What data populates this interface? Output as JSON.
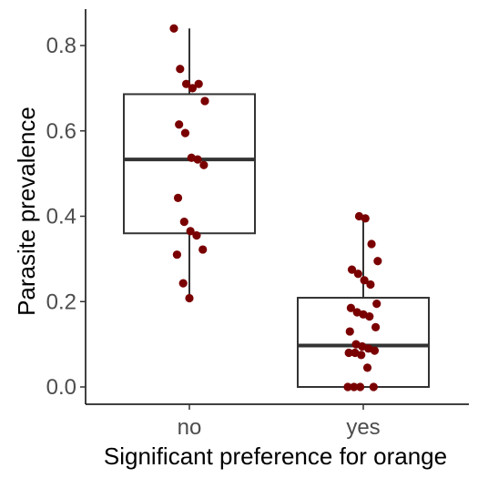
{
  "chart_data": {
    "type": "box",
    "title": "",
    "xlabel": "Significant preference for orange",
    "ylabel": "Parasite prevalence",
    "categories": [
      "no",
      "yes"
    ],
    "ylim": [
      -0.04,
      0.88
    ],
    "yticks": [
      0.0,
      0.2,
      0.4,
      0.6,
      0.8
    ],
    "ytick_labels": [
      "0.0",
      "0.2",
      "0.4",
      "0.6",
      "0.8"
    ],
    "grid": false,
    "colors": {
      "points": "#7a0000",
      "box": "#333333",
      "axis": "#000000"
    },
    "boxes": [
      {
        "category": "no",
        "whisker_low": 0.21,
        "q1": 0.36,
        "median": 0.533,
        "q3": 0.686,
        "whisker_high": 0.84
      },
      {
        "category": "yes",
        "whisker_low": 0.0,
        "q1": 0.0,
        "median": 0.097,
        "q3": 0.209,
        "whisker_high": 0.4
      }
    ],
    "points": [
      {
        "category": "no",
        "values": [
          0.84,
          0.745,
          0.71,
          0.7,
          0.71,
          0.67,
          0.615,
          0.595,
          0.537,
          0.533,
          0.52,
          0.443,
          0.387,
          0.365,
          0.355,
          0.322,
          0.31,
          0.243,
          0.208
        ]
      },
      {
        "category": "yes",
        "values": [
          0.4,
          0.395,
          0.335,
          0.295,
          0.275,
          0.265,
          0.25,
          0.24,
          0.195,
          0.185,
          0.175,
          0.17,
          0.165,
          0.14,
          0.13,
          0.1,
          0.095,
          0.09,
          0.085,
          0.08,
          0.08,
          0.075,
          0.045,
          0.0,
          0.0,
          0.0,
          0.0
        ]
      }
    ]
  }
}
